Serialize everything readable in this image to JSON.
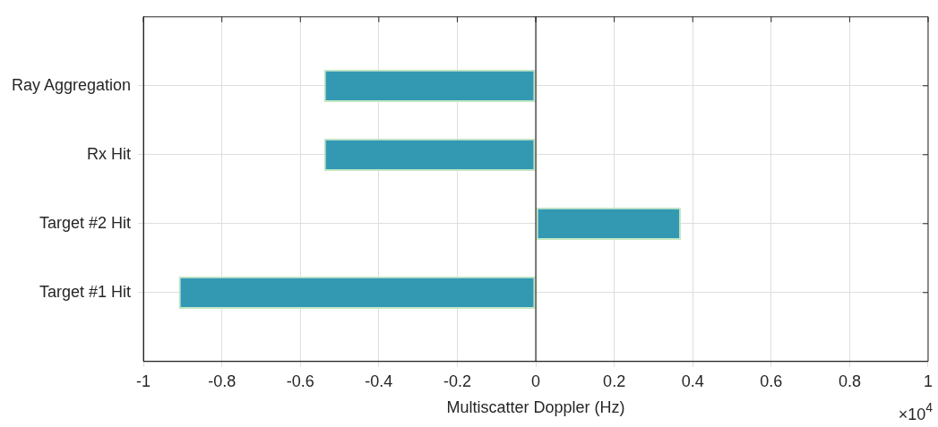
{
  "chart_data": {
    "type": "bar",
    "orientation": "horizontal",
    "categories": [
      "Ray Aggregation",
      "Rx Hit",
      "Target #2 Hit",
      "Target #1 Hit"
    ],
    "values": [
      -0.54,
      -0.54,
      0.37,
      -0.91
    ],
    "color": "#3399b3",
    "xlim": [
      -1,
      1
    ],
    "xticks": [
      -1,
      -0.8,
      -0.6,
      -0.4,
      -0.2,
      0,
      0.2,
      0.4,
      0.6,
      0.8,
      1
    ],
    "xlabel": "Multiscatter Doppler (Hz)",
    "annotations": [
      "×10$^{4}$"
    ],
    "ref_lines": [
      {
        "axis": "x",
        "value": 0,
        "color": "#000000"
      }
    ],
    "grid": true,
    "legend": false
  }
}
